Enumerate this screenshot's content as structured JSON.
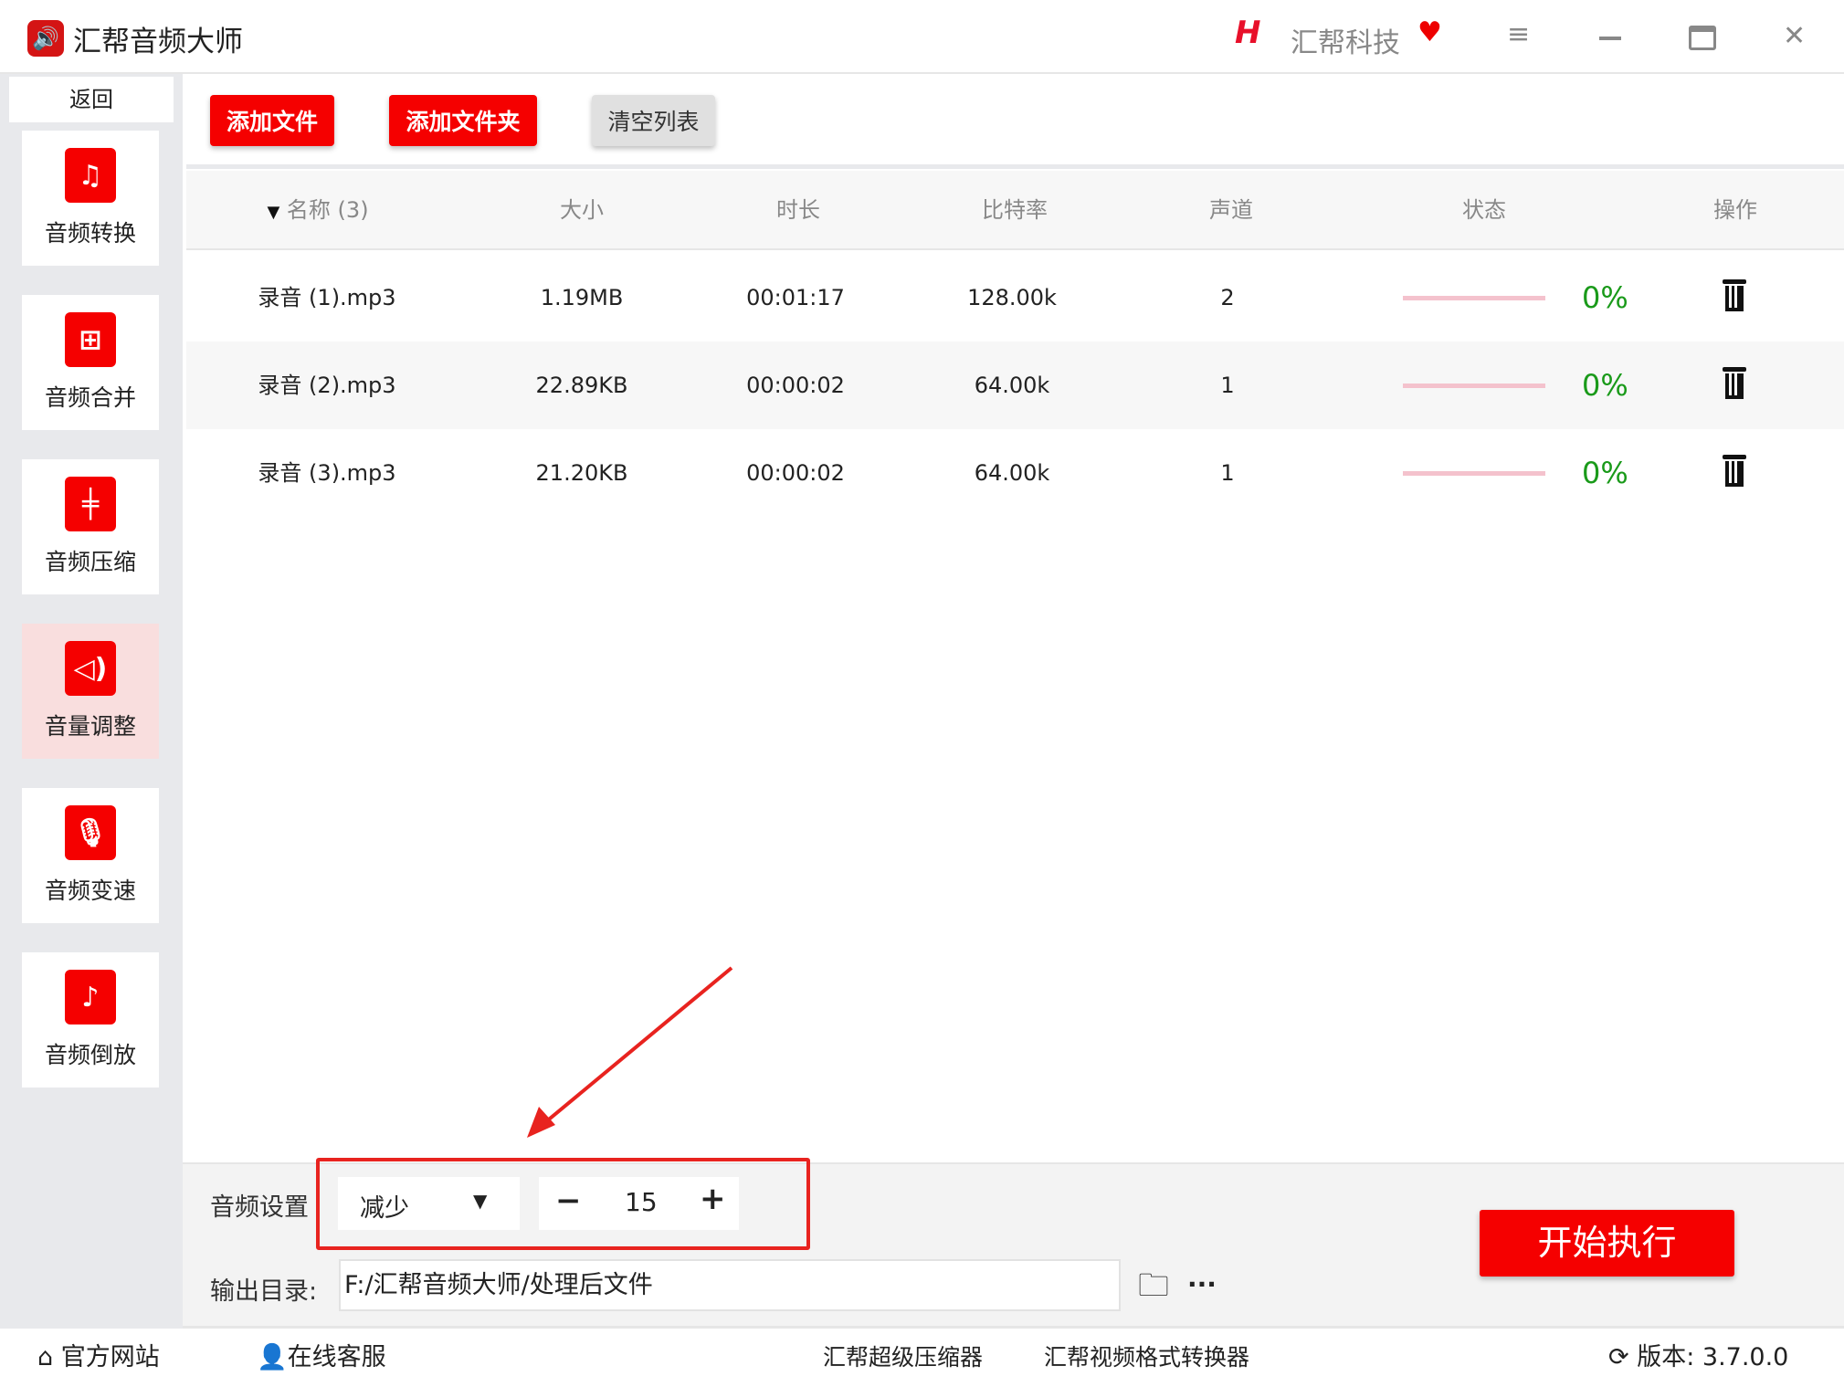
{
  "app": {
    "title": "汇帮音频大师",
    "brand": "汇帮科技"
  },
  "sidebar": {
    "back": "返回",
    "items": [
      {
        "label": "音频转换",
        "icon": "audio-convert-icon"
      },
      {
        "label": "音频合并",
        "icon": "audio-merge-icon"
      },
      {
        "label": "音频压缩",
        "icon": "audio-compress-icon"
      },
      {
        "label": "音量调整",
        "icon": "volume-icon",
        "active": true
      },
      {
        "label": "音频变速",
        "icon": "microphone-icon"
      },
      {
        "label": "音频倒放",
        "icon": "music-note-icon"
      }
    ]
  },
  "toolbar": {
    "add_file": "添加文件",
    "add_folder": "添加文件夹",
    "clear": "清空列表"
  },
  "table": {
    "headers": {
      "name": "名称 (3)",
      "size": "大小",
      "duration": "时长",
      "bitrate": "比特率",
      "channels": "声道",
      "status": "状态",
      "action": "操作"
    },
    "rows": [
      {
        "name": "录音 (1).mp3",
        "size": "1.19MB",
        "duration": "00:01:17",
        "bitrate": "128.00k",
        "channels": "2",
        "progress": "0%"
      },
      {
        "name": "录音 (2).mp3",
        "size": "22.89KB",
        "duration": "00:00:02",
        "bitrate": "64.00k",
        "channels": "1",
        "progress": "0%"
      },
      {
        "name": "录音 (3).mp3",
        "size": "21.20KB",
        "duration": "00:00:02",
        "bitrate": "64.00k",
        "channels": "1",
        "progress": "0%"
      }
    ]
  },
  "settings": {
    "label": "音频设置",
    "mode": "减少",
    "value": "15",
    "minus": "−",
    "plus": "+",
    "output_label": "输出目录:",
    "output_path": "F:/汇帮音频大师/处理后文件",
    "more": "···",
    "start": "开始执行"
  },
  "footer": {
    "website": "官方网站",
    "support": "在线客服",
    "compressor": "汇帮超级压缩器",
    "video_converter": "汇帮视频格式转换器",
    "version": "版本:  3.7.0.0"
  },
  "colors": {
    "accent": "#f50000",
    "progress": "#1a9a1a",
    "highlight_box": "#e8231f"
  }
}
